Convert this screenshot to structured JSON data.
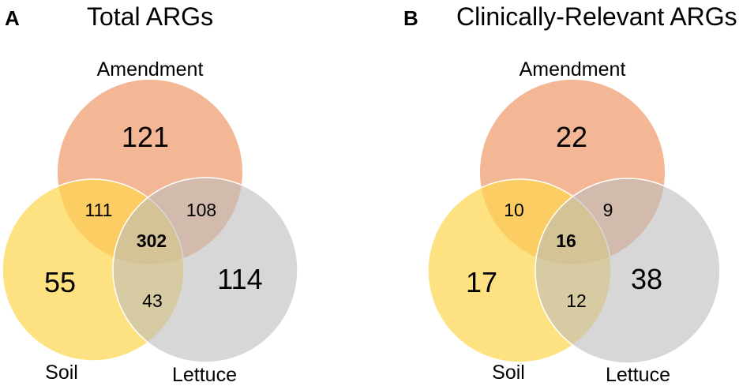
{
  "panels": [
    {
      "letter": "A",
      "title": "Total ARGs",
      "sets": {
        "amendment": {
          "label": "Amendment",
          "color": "#f0a57a"
        },
        "soil": {
          "label": "Soil",
          "color": "#fdd54f"
        },
        "lettuce": {
          "label": "Lettuce",
          "color": "#bdbdbd"
        }
      },
      "regions": {
        "amendment_only": "121",
        "soil_only": "55",
        "lettuce_only": "114",
        "amendment_soil": "111",
        "amendment_lettuce": "108",
        "soil_lettuce": "43",
        "all": "302"
      }
    },
    {
      "letter": "B",
      "title": "Clinically-Relevant ARGs",
      "sets": {
        "amendment": {
          "label": "Amendment",
          "color": "#f0a57a"
        },
        "soil": {
          "label": "Soil",
          "color": "#fdd54f"
        },
        "lettuce": {
          "label": "Lettuce",
          "color": "#bdbdbd"
        }
      },
      "regions": {
        "amendment_only": "22",
        "soil_only": "17",
        "lettuce_only": "38",
        "amendment_soil": "10",
        "amendment_lettuce": "9",
        "soil_lettuce": "12",
        "all": "16"
      }
    }
  ]
}
